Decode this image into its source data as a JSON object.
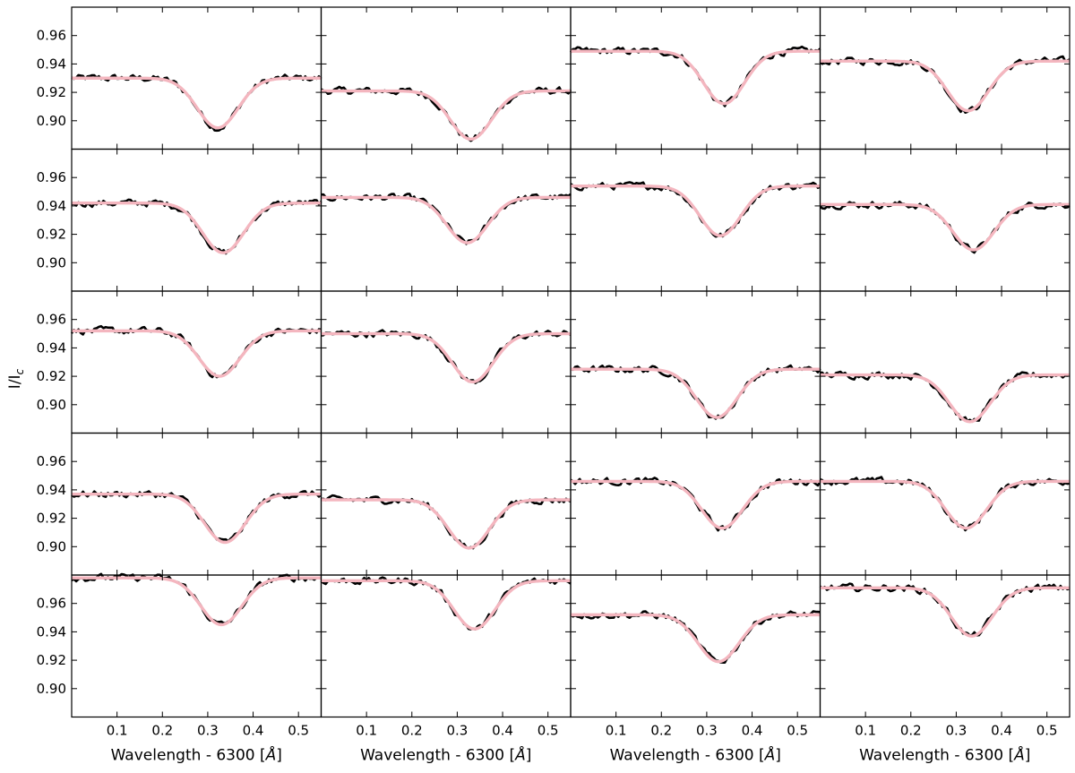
{
  "colors": {
    "observed": "#000000",
    "fit": "#f4b6bf",
    "frame": "#000000",
    "background": "#ffffff"
  },
  "chart_data": {
    "type": "line",
    "grid": false,
    "layout": "5 rows x 4 columns of panels, shared axes",
    "ylabel_main": "I/I",
    "ylabel_sub": "c",
    "xlabel": "Wavelength - 6300 [",
    "xlabel_unit": "Å",
    "xlabel_close": "]",
    "xlim": [
      0.0,
      0.55
    ],
    "ylim": [
      0.88,
      0.98
    ],
    "x_tick_labels": [
      "0.1",
      "0.2",
      "0.3",
      "0.4",
      "0.5"
    ],
    "y_tick_labels": [
      "0.90",
      "0.92",
      "0.94",
      "0.96"
    ],
    "series": [
      {
        "name": "observed"
      },
      {
        "name": "fit"
      }
    ],
    "line_center": 0.33,
    "line_width_sigma": 0.045,
    "panels": [
      {
        "row": 0,
        "col": 0,
        "continuum": 0.93,
        "minimum": 0.895
      },
      {
        "row": 0,
        "col": 1,
        "continuum": 0.921,
        "minimum": 0.887
      },
      {
        "row": 0,
        "col": 2,
        "continuum": 0.949,
        "minimum": 0.912
      },
      {
        "row": 0,
        "col": 3,
        "continuum": 0.942,
        "minimum": 0.907
      },
      {
        "row": 1,
        "col": 0,
        "continuum": 0.942,
        "minimum": 0.907
      },
      {
        "row": 1,
        "col": 1,
        "continuum": 0.946,
        "minimum": 0.914
      },
      {
        "row": 1,
        "col": 2,
        "continuum": 0.954,
        "minimum": 0.919
      },
      {
        "row": 1,
        "col": 3,
        "continuum": 0.941,
        "minimum": 0.909
      },
      {
        "row": 2,
        "col": 0,
        "continuum": 0.952,
        "minimum": 0.92
      },
      {
        "row": 2,
        "col": 1,
        "continuum": 0.95,
        "minimum": 0.916
      },
      {
        "row": 2,
        "col": 2,
        "continuum": 0.925,
        "minimum": 0.891
      },
      {
        "row": 2,
        "col": 3,
        "continuum": 0.921,
        "minimum": 0.888
      },
      {
        "row": 3,
        "col": 0,
        "continuum": 0.937,
        "minimum": 0.903
      },
      {
        "row": 3,
        "col": 1,
        "continuum": 0.933,
        "minimum": 0.899
      },
      {
        "row": 3,
        "col": 2,
        "continuum": 0.946,
        "minimum": 0.913
      },
      {
        "row": 3,
        "col": 3,
        "continuum": 0.946,
        "minimum": 0.913
      },
      {
        "row": 4,
        "col": 0,
        "continuum": 0.978,
        "minimum": 0.945
      },
      {
        "row": 4,
        "col": 1,
        "continuum": 0.976,
        "minimum": 0.942
      },
      {
        "row": 4,
        "col": 2,
        "continuum": 0.952,
        "minimum": 0.919
      },
      {
        "row": 4,
        "col": 3,
        "continuum": 0.971,
        "minimum": 0.937
      }
    ]
  }
}
